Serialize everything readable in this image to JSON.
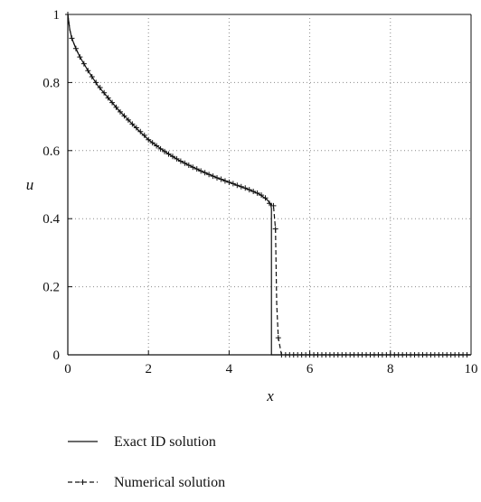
{
  "chart_data": {
    "type": "line",
    "title": "",
    "xlabel": "x",
    "ylabel": "u",
    "xlim": [
      0,
      10
    ],
    "ylim": [
      0,
      1
    ],
    "x_ticks": [
      0,
      2,
      4,
      6,
      8,
      10
    ],
    "y_ticks": [
      0,
      0.2,
      0.4,
      0.6,
      0.8,
      1
    ],
    "x_tick_labels": [
      "0",
      "2",
      "4",
      "6",
      "8",
      "10"
    ],
    "y_tick_labels": [
      "0",
      "0.2",
      "0.4",
      "0.6",
      "0.8",
      "1"
    ],
    "grid": true,
    "grid_style": "dotted",
    "legend_position": "below",
    "colors": {
      "axis": "#111111",
      "grid": "#8a8a8a",
      "series": "#111111"
    },
    "series": [
      {
        "name": "Exact ID solution",
        "style": "solid",
        "x": [
          0,
          0.05,
          0.1,
          0.2,
          0.3,
          0.5,
          0.75,
          1.0,
          1.25,
          1.5,
          1.75,
          2.0,
          2.25,
          2.5,
          2.75,
          3.0,
          3.25,
          3.5,
          3.75,
          4.0,
          4.25,
          4.5,
          4.75,
          4.95,
          5.03,
          5.05,
          5.05,
          5.1,
          6.0,
          8.0,
          10.0
        ],
        "y": [
          1.0,
          0.955,
          0.93,
          0.9,
          0.875,
          0.835,
          0.79,
          0.755,
          0.72,
          0.69,
          0.66,
          0.632,
          0.61,
          0.59,
          0.572,
          0.557,
          0.543,
          0.53,
          0.518,
          0.507,
          0.496,
          0.485,
          0.472,
          0.455,
          0.443,
          0.43,
          0.0,
          0.0,
          0.0,
          0.0,
          0.0
        ]
      },
      {
        "name": "Numerical solution",
        "style": "dashed",
        "marker": "+",
        "x": [
          0,
          0.05,
          0.1,
          0.2,
          0.3,
          0.5,
          0.75,
          1.0,
          1.25,
          1.5,
          1.75,
          2.0,
          2.25,
          2.5,
          2.75,
          3.0,
          3.25,
          3.5,
          3.75,
          4.0,
          4.25,
          4.5,
          4.75,
          4.95,
          5.0,
          5.1,
          5.15,
          5.18,
          5.22,
          5.3,
          6.0,
          8.0,
          10.0
        ],
        "y": [
          1.0,
          0.955,
          0.93,
          0.9,
          0.875,
          0.835,
          0.79,
          0.755,
          0.72,
          0.69,
          0.66,
          0.632,
          0.61,
          0.59,
          0.572,
          0.557,
          0.543,
          0.53,
          0.518,
          0.507,
          0.496,
          0.485,
          0.472,
          0.455,
          0.445,
          0.438,
          0.37,
          0.15,
          0.05,
          0.0,
          0.0,
          0.0,
          0.0
        ],
        "marker_x": [
          0,
          0.1,
          0.2,
          0.3,
          0.4,
          0.5,
          0.6,
          0.7,
          0.8,
          0.9,
          1.0,
          1.1,
          1.2,
          1.3,
          1.4,
          1.5,
          1.6,
          1.7,
          1.8,
          1.9,
          2.0,
          2.1,
          2.2,
          2.3,
          2.4,
          2.5,
          2.6,
          2.7,
          2.8,
          2.9,
          3.0,
          3.1,
          3.2,
          3.3,
          3.4,
          3.5,
          3.6,
          3.7,
          3.8,
          3.9,
          4.0,
          4.1,
          4.2,
          4.3,
          4.4,
          4.5,
          4.6,
          4.7,
          4.8,
          4.9,
          5.0,
          5.1,
          5.15,
          5.22,
          5.3,
          5.4,
          5.5,
          5.6,
          5.7,
          5.8,
          5.9,
          6.0,
          6.1,
          6.2,
          6.3,
          6.4,
          6.5,
          6.6,
          6.7,
          6.8,
          6.9,
          7.0,
          7.1,
          7.2,
          7.3,
          7.4,
          7.5,
          7.6,
          7.7,
          7.8,
          7.9,
          8.0,
          8.1,
          8.2,
          8.3,
          8.4,
          8.5,
          8.6,
          8.7,
          8.8,
          8.9,
          9.0,
          9.1,
          9.2,
          9.3,
          9.4,
          9.5,
          9.6,
          9.7,
          9.8,
          9.9,
          10.0
        ],
        "marker_y": [
          1.0,
          0.93,
          0.9,
          0.875,
          0.855,
          0.835,
          0.817,
          0.8,
          0.785,
          0.77,
          0.755,
          0.741,
          0.727,
          0.714,
          0.702,
          0.69,
          0.678,
          0.667,
          0.656,
          0.645,
          0.632,
          0.623,
          0.614,
          0.605,
          0.597,
          0.59,
          0.583,
          0.576,
          0.569,
          0.563,
          0.557,
          0.551,
          0.546,
          0.54,
          0.535,
          0.53,
          0.525,
          0.52,
          0.516,
          0.511,
          0.507,
          0.503,
          0.498,
          0.494,
          0.49,
          0.485,
          0.48,
          0.475,
          0.469,
          0.461,
          0.445,
          0.438,
          0.37,
          0.05,
          0.0,
          0.0,
          0.0,
          0.0,
          0.0,
          0.0,
          0.0,
          0.0,
          0.0,
          0.0,
          0.0,
          0.0,
          0.0,
          0.0,
          0.0,
          0.0,
          0.0,
          0.0,
          0.0,
          0.0,
          0.0,
          0.0,
          0.0,
          0.0,
          0.0,
          0.0,
          0.0,
          0.0,
          0.0,
          0.0,
          0.0,
          0.0,
          0.0,
          0.0,
          0.0,
          0.0,
          0.0,
          0.0,
          0.0,
          0.0,
          0.0,
          0.0,
          0.0,
          0.0,
          0.0,
          0.0,
          0.0
        ]
      }
    ]
  }
}
